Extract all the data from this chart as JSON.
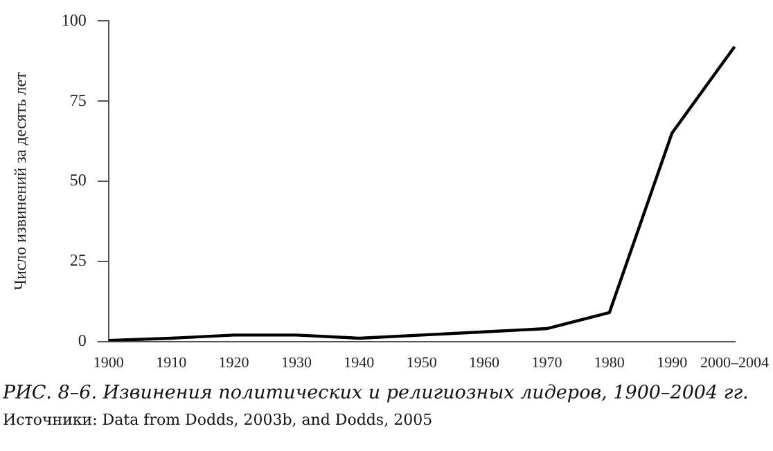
{
  "chart_data": {
    "type": "line",
    "title": "РИС. 8–6. Извинения политических и религиозных лидеров, 1900–2004 гг.",
    "ylabel": "Число извинений за десять лет",
    "annotations": [
      "Источники: Data from Dodds, 2003b, and Dodds, 2005"
    ],
    "categories": [
      "1900",
      "1910",
      "1920",
      "1930",
      "1940",
      "1950",
      "1960",
      "1970",
      "1980",
      "1990",
      "2000–2004"
    ],
    "series": [
      {
        "color": "#000000",
        "values": [
          0.3,
          1,
          2,
          2,
          1,
          2,
          3,
          4,
          9,
          65,
          92
        ]
      }
    ],
    "ylim": [
      0,
      100
    ],
    "yticks": [
      0,
      25,
      50,
      75,
      100
    ],
    "grid": false,
    "legend": false,
    "marker": "none",
    "line_style": "solid"
  }
}
